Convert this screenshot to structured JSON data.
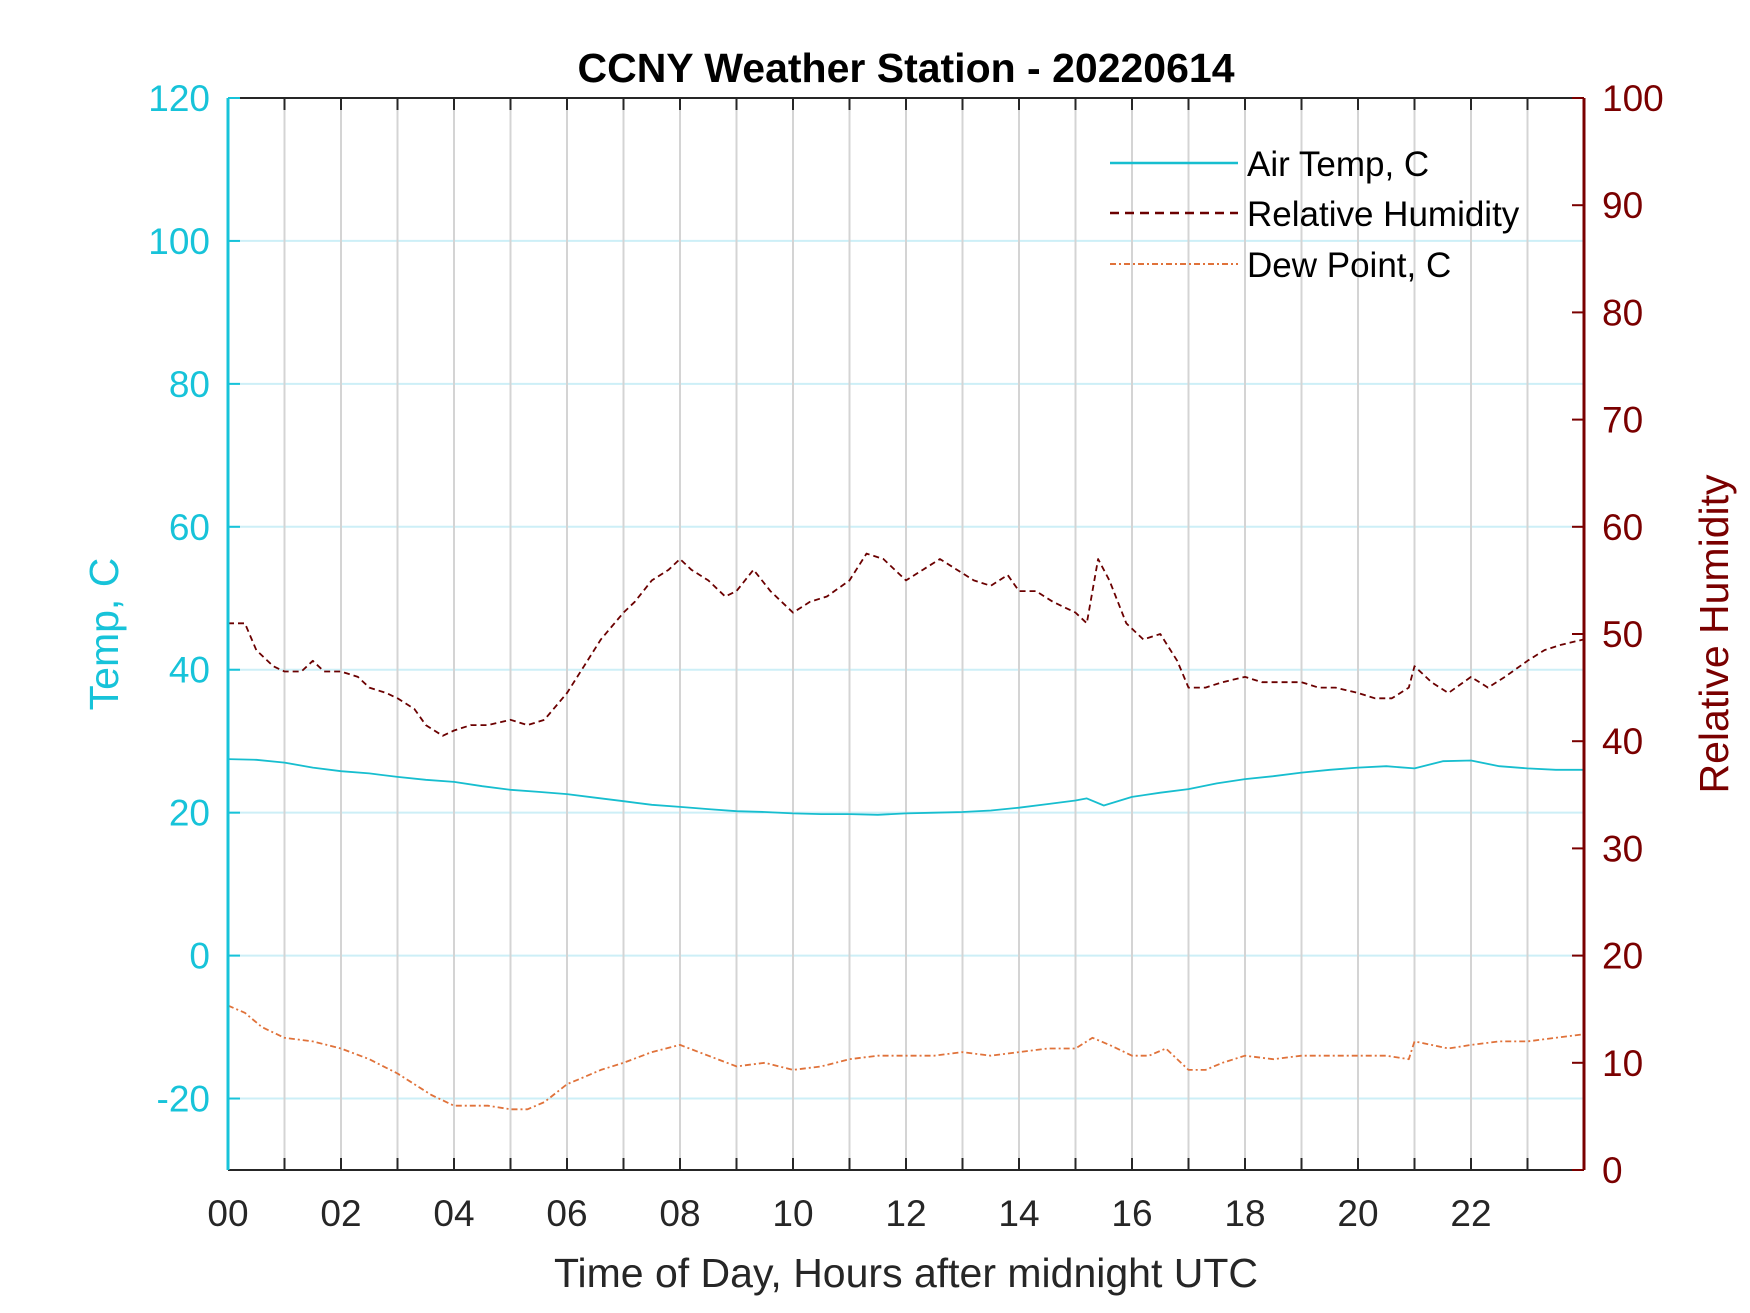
{
  "chart_data": {
    "type": "line",
    "title": "CCNY Weather Station - 20220614",
    "xlabel": "Time of Day, Hours after midnight UTC",
    "ylabel_left": "Temp, C",
    "ylabel_right": "Relative Humidity",
    "xlim": [
      0,
      24
    ],
    "ylim_left": [
      -30,
      120
    ],
    "ylim_right": [
      0,
      100
    ],
    "x_tick_values": [
      0,
      2,
      4,
      6,
      8,
      10,
      12,
      14,
      16,
      18,
      20,
      22
    ],
    "x_tick_labels": [
      "00",
      "02",
      "04",
      "06",
      "08",
      "10",
      "12",
      "14",
      "16",
      "18",
      "20",
      "22"
    ],
    "y_left_ticks": [
      -20,
      0,
      20,
      40,
      60,
      80,
      100,
      120
    ],
    "y_left_tick_labels": [
      "-20",
      "0",
      "20",
      "40",
      "60",
      "80",
      "100",
      "120"
    ],
    "y_right_ticks": [
      0,
      10,
      20,
      30,
      40,
      50,
      60,
      70,
      80,
      90,
      100
    ],
    "y_right_tick_labels": [
      "0",
      "10",
      "20",
      "30",
      "40",
      "50",
      "60",
      "70",
      "80",
      "90",
      "100"
    ],
    "grid": true,
    "legend_position": "top-right",
    "colors": {
      "left_axis": "#17c3d9",
      "right_axis": "#7a0000",
      "air_temp": "#17becf",
      "humidity": "#6b0000",
      "dew_point": "#e0723a",
      "vgrid": "#d4d4d4",
      "hgrid": "#cdeff7"
    },
    "series": [
      {
        "name": "Air Temp, C",
        "axis": "left",
        "style": "solid",
        "x": [
          0,
          0.5,
          1,
          1.5,
          2,
          2.5,
          3,
          3.5,
          4,
          4.5,
          5,
          5.5,
          6,
          6.5,
          7,
          7.5,
          8,
          8.5,
          9,
          9.5,
          10,
          10.5,
          11,
          11.5,
          12,
          12.5,
          13,
          13.5,
          14,
          14.5,
          15,
          15.2,
          15.5,
          16,
          16.5,
          17,
          17.5,
          18,
          18.5,
          19,
          19.5,
          20,
          20.5,
          21,
          21.5,
          22,
          22.5,
          23,
          23.5,
          24
        ],
        "y": [
          27.5,
          27.4,
          27.0,
          26.3,
          25.8,
          25.5,
          25.0,
          24.6,
          24.3,
          23.7,
          23.2,
          22.9,
          22.6,
          22.1,
          21.6,
          21.1,
          20.8,
          20.5,
          20.2,
          20.1,
          19.9,
          19.8,
          19.8,
          19.7,
          19.9,
          20.0,
          20.1,
          20.3,
          20.7,
          21.2,
          21.7,
          22.0,
          21.0,
          22.2,
          22.8,
          23.3,
          24.1,
          24.7,
          25.1,
          25.6,
          26.0,
          26.3,
          26.5,
          26.2,
          27.2,
          27.3,
          26.5,
          26.2,
          26.0,
          26.0
        ]
      },
      {
        "name": "Relative Humidity",
        "axis": "right",
        "style": "dashed",
        "x": [
          0,
          0.3,
          0.5,
          0.8,
          1.0,
          1.3,
          1.5,
          1.7,
          2.0,
          2.3,
          2.5,
          2.8,
          3.0,
          3.3,
          3.5,
          3.8,
          4.0,
          4.3,
          4.6,
          5.0,
          5.3,
          5.6,
          6.0,
          6.3,
          6.6,
          7.0,
          7.2,
          7.5,
          7.8,
          8.0,
          8.2,
          8.5,
          8.8,
          9.0,
          9.3,
          9.6,
          10.0,
          10.3,
          10.6,
          11.0,
          11.3,
          11.6,
          12.0,
          12.3,
          12.6,
          12.9,
          13.2,
          13.5,
          13.8,
          14.0,
          14.3,
          14.6,
          15.0,
          15.2,
          15.4,
          15.6,
          15.9,
          16.2,
          16.5,
          16.8,
          17.0,
          17.3,
          17.6,
          18.0,
          18.3,
          18.6,
          19.0,
          19.3,
          19.6,
          20.0,
          20.3,
          20.6,
          20.9,
          21.0,
          21.3,
          21.6,
          22.0,
          22.3,
          22.6,
          23.0,
          23.3,
          23.6,
          24.0
        ],
        "y": [
          51,
          51,
          48.5,
          47,
          46.5,
          46.5,
          47.5,
          46.5,
          46.5,
          46,
          45,
          44.5,
          44,
          43,
          41.5,
          40.5,
          41,
          41.5,
          41.5,
          42,
          41.5,
          42,
          44.5,
          47,
          49.5,
          52,
          53,
          55,
          56,
          57,
          56,
          55,
          53.5,
          54,
          56,
          54,
          52,
          53,
          53.5,
          55,
          57.5,
          57,
          55,
          56,
          57,
          56,
          55,
          54.5,
          55.5,
          54,
          54,
          53,
          52,
          51,
          57,
          55,
          51,
          49.5,
          50,
          47.5,
          45,
          45,
          45.5,
          46,
          45.5,
          45.5,
          45.5,
          45,
          45,
          44.5,
          44,
          44,
          45,
          47,
          45.5,
          44.5,
          46,
          45,
          46,
          47.5,
          48.5,
          49,
          49.5
        ]
      },
      {
        "name": "Dew Point, C",
        "axis": "left",
        "style": "dashdot",
        "x": [
          0,
          0.3,
          0.6,
          1.0,
          1.5,
          2.0,
          2.5,
          3.0,
          3.3,
          3.6,
          4.0,
          4.3,
          4.6,
          5.0,
          5.3,
          5.6,
          6.0,
          6.3,
          6.6,
          7.0,
          7.5,
          8.0,
          8.5,
          9.0,
          9.5,
          10.0,
          10.5,
          11.0,
          11.5,
          12.0,
          12.5,
          13.0,
          13.5,
          14.0,
          14.5,
          15.0,
          15.3,
          15.6,
          16.0,
          16.3,
          16.6,
          17.0,
          17.3,
          17.6,
          18.0,
          18.5,
          19.0,
          19.5,
          20.0,
          20.5,
          20.9,
          21.0,
          21.3,
          21.6,
          22.0,
          22.5,
          23.0,
          23.5,
          24.0
        ],
        "y": [
          -7,
          -8,
          -10,
          -11.5,
          -12,
          -13,
          -14.5,
          -16.5,
          -18,
          -19.5,
          -21,
          -21,
          -21,
          -21.5,
          -21.5,
          -20.5,
          -18,
          -17,
          -16,
          -15,
          -13.5,
          -12.5,
          -14,
          -15.5,
          -15,
          -16,
          -15.5,
          -14.5,
          -14,
          -14,
          -14,
          -13.5,
          -14,
          -13.5,
          -13,
          -13,
          -11.5,
          -12.5,
          -14,
          -14,
          -13,
          -16,
          -16,
          -15,
          -14,
          -14.5,
          -14,
          -14,
          -14,
          -14,
          -14.5,
          -12,
          -12.5,
          -13,
          -12.5,
          -12,
          -12,
          -11.5,
          -11
        ]
      }
    ]
  }
}
